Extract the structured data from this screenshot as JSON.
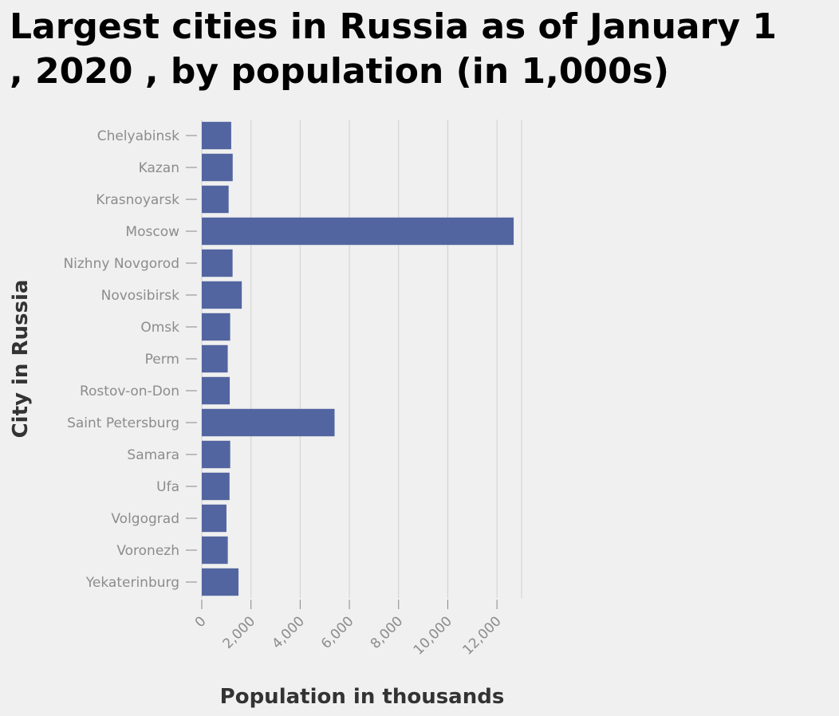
{
  "chart_data": {
    "type": "bar",
    "orientation": "horizontal",
    "title": "Largest cities in Russia as of January 1\n, 2020 , by population (in 1,000s)",
    "xlabel": "Population in thousands",
    "ylabel": "City in Russia",
    "categories": [
      "Chelyabinsk",
      "Kazan",
      "Krasnoyarsk",
      "Moscow",
      "Nizhny Novgorod",
      "Novosibirsk",
      "Omsk",
      "Perm",
      "Rostov-on-Don",
      "Saint Petersburg",
      "Samara",
      "Ufa",
      "Volgograd",
      "Voronezh",
      "Yekaterinburg"
    ],
    "values": [
      1196,
      1257,
      1092,
      12678,
      1252,
      1626,
      1154,
      1055,
      1137,
      5398,
      1156,
      1128,
      1004,
      1058,
      1493
    ],
    "xlim": [
      0,
      13000
    ],
    "xticks": [
      "0",
      "2,000",
      "4,000",
      "6,000",
      "8,000",
      "10,000",
      "12,000"
    ],
    "xtick_values": [
      0,
      2000,
      4000,
      6000,
      8000,
      10000,
      12000
    ],
    "grid": "vertical",
    "bar_color": "#5365a0",
    "grid_color": "#d0d0d0",
    "axis_color": "#888888",
    "background": "#f0f0f0"
  }
}
